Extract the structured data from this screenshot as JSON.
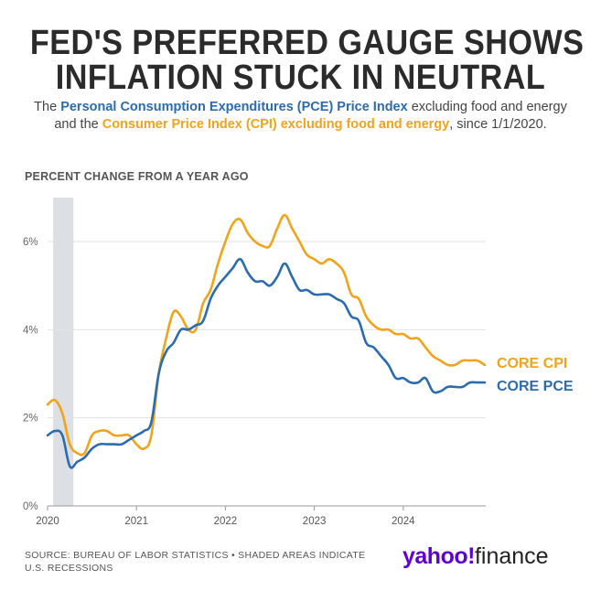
{
  "header": {
    "title_line1": "FED'S PREFERRED GAUGE SHOWS",
    "title_line2": "INFLATION STUCK IN NEUTRAL",
    "subtitle_pre": "The ",
    "subtitle_pce": "Personal Consumption Expenditures (PCE) Price Index",
    "subtitle_mid": " excluding food and energy and the ",
    "subtitle_cpi": "Consumer Price Index (CPI) excluding food and energy",
    "subtitle_post": ", since 1/1/2020."
  },
  "footer": {
    "source_line1": "SOURCE: BUREAU OF LABOR STATISTICS • SHADED AREAS INDICATE",
    "source_line2": "U.S. RECESSIONS",
    "logo_yahoo": "yahoo!",
    "logo_finance": "finance"
  },
  "colors": {
    "cpi": "#f0a31b",
    "pce": "#2b6cb0",
    "recession": "#dcdfe3",
    "grid": "#e2e2e2"
  },
  "chart_data": {
    "type": "line",
    "ylabel": "PERCENT CHANGE FROM A YEAR AGO",
    "ylim": [
      0,
      7
    ],
    "yticks": [
      0,
      2,
      4,
      6
    ],
    "ytick_labels": [
      "0%",
      "2%",
      "4%",
      "6%"
    ],
    "xlim": [
      "2020-01",
      "2024-12"
    ],
    "xticks": [
      "2020-01",
      "2021-01",
      "2022-01",
      "2023-01",
      "2024-01"
    ],
    "xtick_labels": [
      "2020",
      "2021",
      "2022",
      "2023",
      "2024"
    ],
    "grid": true,
    "recession": {
      "start": "2020-02",
      "end": "2020-04"
    },
    "x": [
      "2020-01",
      "2020-02",
      "2020-03",
      "2020-04",
      "2020-05",
      "2020-06",
      "2020-07",
      "2020-08",
      "2020-09",
      "2020-10",
      "2020-11",
      "2020-12",
      "2021-01",
      "2021-02",
      "2021-03",
      "2021-04",
      "2021-05",
      "2021-06",
      "2021-07",
      "2021-08",
      "2021-09",
      "2021-10",
      "2021-11",
      "2021-12",
      "2022-01",
      "2022-02",
      "2022-03",
      "2022-04",
      "2022-05",
      "2022-06",
      "2022-07",
      "2022-08",
      "2022-09",
      "2022-10",
      "2022-11",
      "2022-12",
      "2023-01",
      "2023-02",
      "2023-03",
      "2023-04",
      "2023-05",
      "2023-06",
      "2023-07",
      "2023-08",
      "2023-09",
      "2023-10",
      "2023-11",
      "2023-12",
      "2024-01",
      "2024-02",
      "2024-03",
      "2024-04",
      "2024-05",
      "2024-06",
      "2024-07",
      "2024-08",
      "2024-09",
      "2024-10",
      "2024-11",
      "2024-12"
    ],
    "series": [
      {
        "name": "CORE CPI",
        "color": "#f0a31b",
        "values": [
          2.3,
          2.4,
          2.1,
          1.4,
          1.2,
          1.2,
          1.6,
          1.7,
          1.7,
          1.6,
          1.6,
          1.6,
          1.4,
          1.3,
          1.6,
          3.0,
          3.8,
          4.4,
          4.3,
          4.0,
          4.0,
          4.6,
          4.9,
          5.5,
          6.0,
          6.4,
          6.5,
          6.2,
          6.0,
          5.9,
          5.9,
          6.3,
          6.6,
          6.3,
          6.0,
          5.7,
          5.6,
          5.5,
          5.6,
          5.5,
          5.3,
          4.8,
          4.7,
          4.3,
          4.1,
          4.0,
          4.0,
          3.9,
          3.9,
          3.8,
          3.8,
          3.6,
          3.4,
          3.3,
          3.2,
          3.2,
          3.3,
          3.3,
          3.3,
          3.2
        ]
      },
      {
        "name": "CORE PCE",
        "color": "#2b6cb0",
        "values": [
          1.6,
          1.7,
          1.6,
          0.9,
          1.0,
          1.1,
          1.3,
          1.4,
          1.4,
          1.4,
          1.4,
          1.5,
          1.6,
          1.7,
          1.9,
          3.0,
          3.5,
          3.7,
          4.0,
          4.0,
          4.1,
          4.2,
          4.7,
          5.0,
          5.2,
          5.4,
          5.6,
          5.3,
          5.1,
          5.1,
          5.0,
          5.2,
          5.5,
          5.2,
          4.9,
          4.9,
          4.8,
          4.8,
          4.8,
          4.7,
          4.6,
          4.3,
          4.2,
          3.7,
          3.6,
          3.4,
          3.2,
          2.9,
          2.9,
          2.8,
          2.8,
          2.9,
          2.6,
          2.6,
          2.7,
          2.7,
          2.7,
          2.8,
          2.8,
          2.8
        ]
      }
    ]
  }
}
